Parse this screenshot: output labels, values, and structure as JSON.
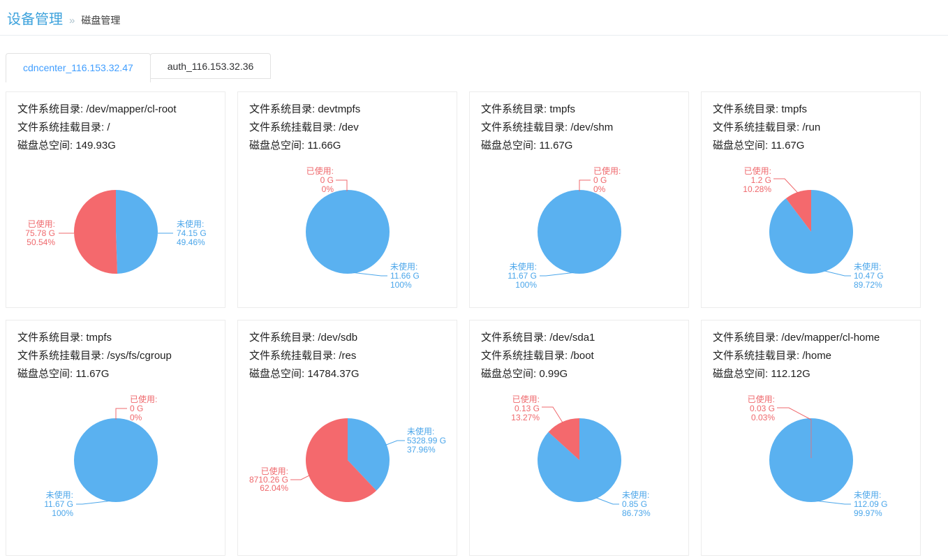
{
  "breadcrumb": {
    "section": "设备管理",
    "separator": "»",
    "current": "磁盘管理"
  },
  "tabs": [
    {
      "label": "cdncenter_116.153.32.47",
      "active": true
    },
    {
      "label": "auth_116.153.32.36",
      "active": false
    }
  ],
  "colors": {
    "used_slice": "#f4696d",
    "unused_slice": "#5ab1f0",
    "used_text": "#ef686c",
    "unused_text": "#4ba6ea"
  },
  "cards": [
    {
      "fs_text": "文件系统目录: /dev/mapper/cl-root",
      "mount_text": "文件系统挂载目录: /",
      "total_text": "磁盘总空间: 149.93G",
      "used": {
        "name": "已使用:",
        "value": "75.78 G",
        "pct": "50.54%",
        "pct_num": 50.54,
        "label_pos": "left"
      },
      "unused": {
        "name": "未使用:",
        "value": "74.15 G",
        "pct": "49.46%",
        "pct_num": 49.46,
        "label_pos": "right"
      }
    },
    {
      "fs_text": "文件系统目录: devtmpfs",
      "mount_text": "文件系统挂载目录: /dev",
      "total_text": "磁盘总空间: 11.66G",
      "used": {
        "name": "已使用:",
        "value": "0 G",
        "pct": "0%",
        "pct_num": 0,
        "label_pos": "top-left"
      },
      "unused": {
        "name": "未使用:",
        "value": "11.66 G",
        "pct": "100%",
        "pct_num": 100,
        "label_pos": "bottom-right"
      }
    },
    {
      "fs_text": "文件系统目录: tmpfs",
      "mount_text": "文件系统挂载目录: /dev/shm",
      "total_text": "磁盘总空间: 11.67G",
      "used": {
        "name": "已使用:",
        "value": "0 G",
        "pct": "0%",
        "pct_num": 0,
        "label_pos": "top-right"
      },
      "unused": {
        "name": "未使用:",
        "value": "11.67 G",
        "pct": "100%",
        "pct_num": 100,
        "label_pos": "bottom-left"
      }
    },
    {
      "fs_text": "文件系统目录: tmpfs",
      "mount_text": "文件系统挂载目录: /run",
      "total_text": "磁盘总空间: 11.67G",
      "used": {
        "name": "已使用:",
        "value": "1.2 G",
        "pct": "10.28%",
        "pct_num": 10.28,
        "label_pos": "top-left-slant"
      },
      "unused": {
        "name": "未使用:",
        "value": "10.47 G",
        "pct": "89.72%",
        "pct_num": 89.72,
        "label_pos": "bottom-right"
      }
    },
    {
      "fs_text": "文件系统目录: tmpfs",
      "mount_text": "文件系统挂载目录: /sys/fs/cgroup",
      "total_text": "磁盘总空间: 11.67G",
      "used": {
        "name": "已使用:",
        "value": "0 G",
        "pct": "0%",
        "pct_num": 0,
        "label_pos": "top-right"
      },
      "unused": {
        "name": "未使用:",
        "value": "11.67 G",
        "pct": "100%",
        "pct_num": 100,
        "label_pos": "bottom-left"
      }
    },
    {
      "fs_text": "文件系统目录: /dev/sdb",
      "mount_text": "文件系统挂载目录: /res",
      "total_text": "磁盘总空间: 14784.37G",
      "used": {
        "name": "已使用:",
        "value": "8710.26 G",
        "pct": "62.04%",
        "pct_num": 62.04,
        "label_pos": "left-slant"
      },
      "unused": {
        "name": "未使用:",
        "value": "5328.99 G",
        "pct": "37.96%",
        "pct_num": 37.96,
        "label_pos": "right-slant"
      }
    },
    {
      "fs_text": "文件系统目录: /dev/sda1",
      "mount_text": "文件系统挂载目录: /boot",
      "total_text": "磁盘总空间: 0.99G",
      "used": {
        "name": "已使用:",
        "value": "0.13 G",
        "pct": "13.27%",
        "pct_num": 13.27,
        "label_pos": "top-left-slant"
      },
      "unused": {
        "name": "未使用:",
        "value": "0.85 G",
        "pct": "86.73%",
        "pct_num": 86.73,
        "label_pos": "bottom-right"
      }
    },
    {
      "fs_text": "文件系统目录: /dev/mapper/cl-home",
      "mount_text": "文件系统挂载目录: /home",
      "total_text": "磁盘总空间: 112.12G",
      "used": {
        "name": "已使用:",
        "value": "0.03 G",
        "pct": "0.03%",
        "pct_num": 0.03,
        "label_pos": "top-slant"
      },
      "unused": {
        "name": "未使用:",
        "value": "112.09 G",
        "pct": "99.97%",
        "pct_num": 99.97,
        "label_pos": "bottom-right"
      },
      "radius_line": true
    }
  ]
}
